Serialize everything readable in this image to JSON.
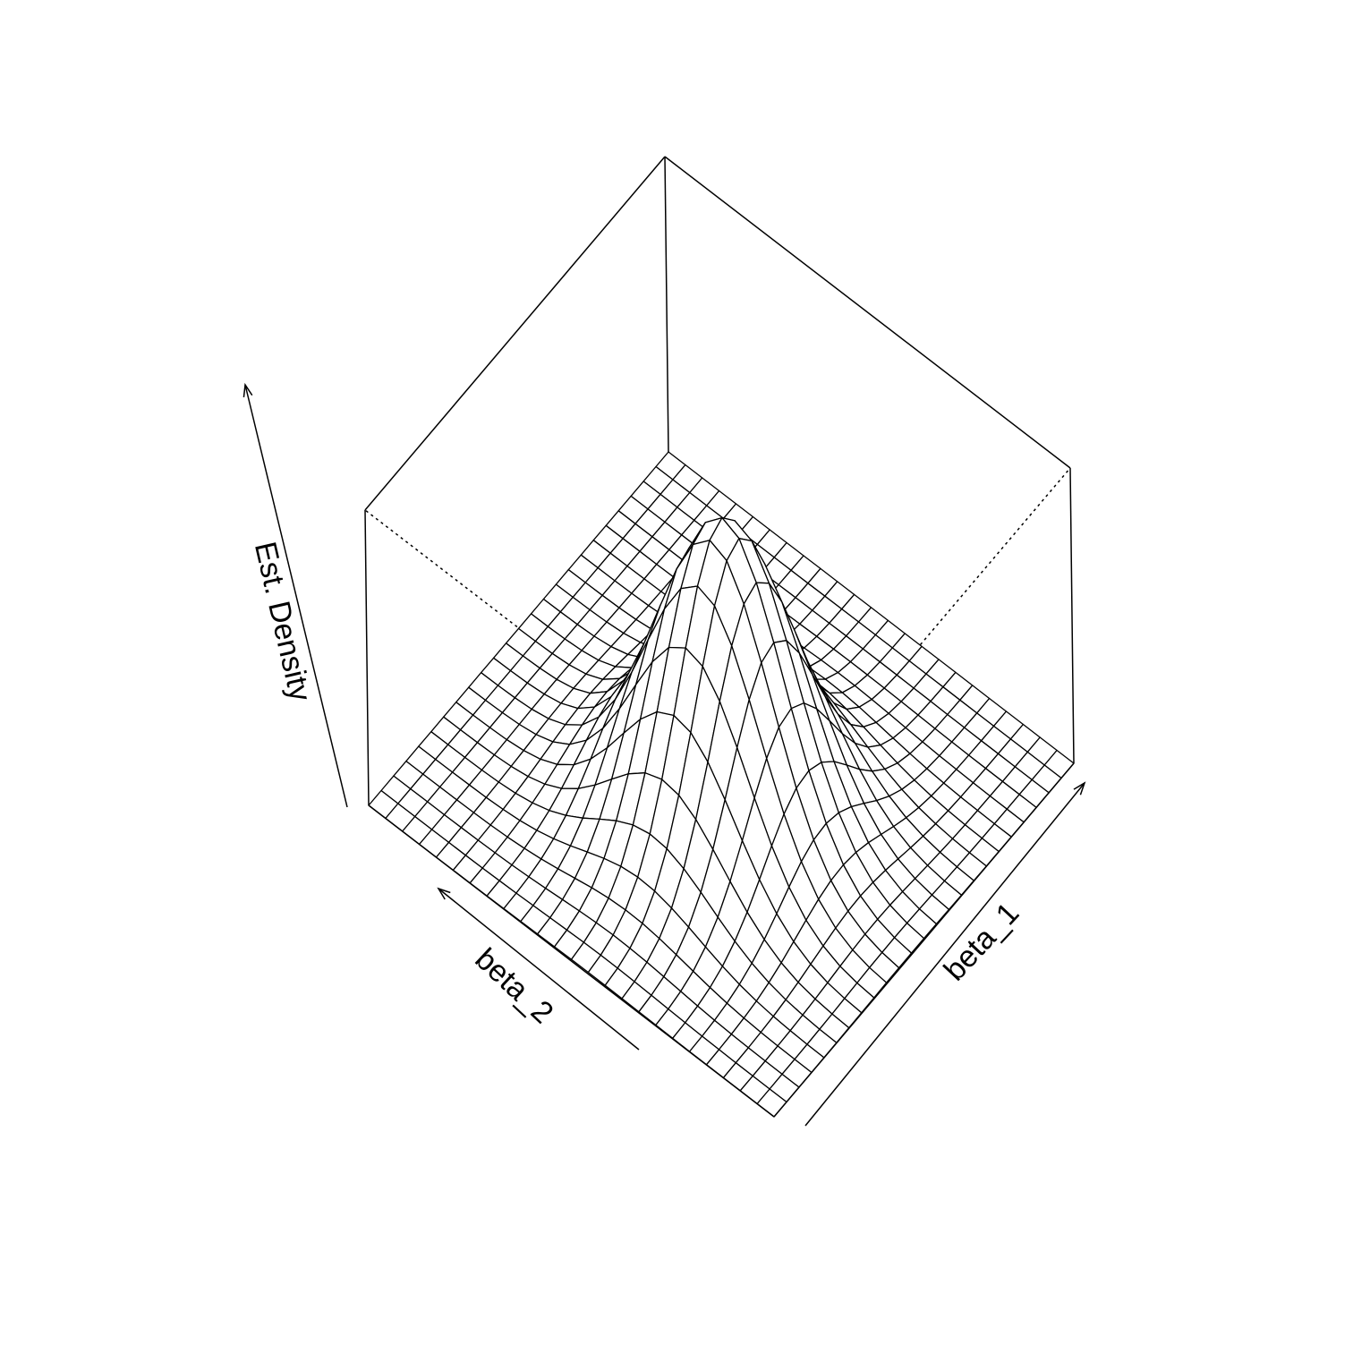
{
  "chart_data": {
    "type": "surface",
    "title": "",
    "xlabel": "beta_1",
    "ylabel": "beta_2",
    "zlabel": "Est. Density",
    "grid_size": 25,
    "surface": {
      "peak_center": [
        0.45,
        0.45
      ],
      "sigma": [
        0.14,
        0.14
      ],
      "peak_height": 1.0,
      "description": "unimodal bivariate density estimate"
    },
    "box": true,
    "ticks": false,
    "colors": {
      "line": "#000000",
      "surface_fill": "#ffffff",
      "background": "#ffffff"
    }
  }
}
